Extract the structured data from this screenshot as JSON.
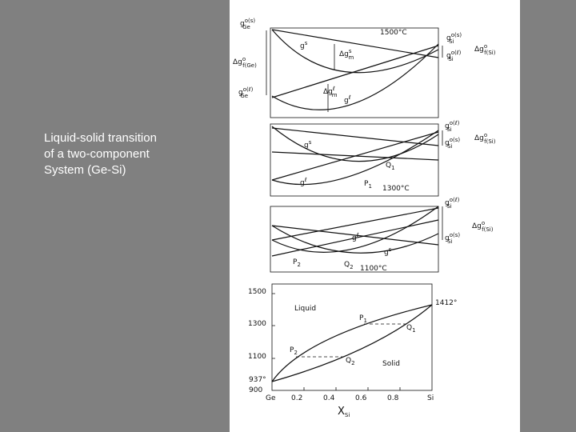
{
  "caption": [
    "Liquid-solid transition",
    "of a two-component",
    "System (Ge-Si)"
  ],
  "figure": {
    "panels": [
      {
        "labels": [
          {
            "b": "1500°C"
          },
          {
            "b": "g",
            "sup": "o(s)",
            "sub": "Ge"
          },
          {
            "b": "Δg",
            "sup": "o",
            "sub": "f(Ge)"
          },
          {
            "b": "g",
            "sup": "o(ℓ)",
            "sub": "Ge"
          },
          {
            "b": "g",
            "sup": "s"
          },
          {
            "b": "Δg",
            "sup": "s",
            "sub": "m"
          },
          {
            "b": "Δg",
            "sup": "ℓ",
            "sub": "m"
          },
          {
            "b": "g",
            "sup": "ℓ"
          },
          {
            "b": "g",
            "sup": "o(s)",
            "sub": "Si"
          },
          {
            "b": "g",
            "sup": "o(ℓ)",
            "sub": "Si"
          },
          {
            "b": "Δg",
            "sup": "o",
            "sub": "f(Si)"
          }
        ]
      },
      {
        "labels": [
          {
            "b": "1300°C"
          },
          {
            "b": "g",
            "sup": "s"
          },
          {
            "b": "g",
            "sup": "ℓ"
          },
          {
            "b": "Q",
            "sub": "1"
          },
          {
            "b": "P",
            "sub": "1"
          },
          {
            "b": "g",
            "sup": "o(ℓ)",
            "sub": "Si"
          },
          {
            "b": "g",
            "sup": "o(s)",
            "sub": "Si"
          },
          {
            "b": "Δg",
            "sup": "o",
            "sub": "f(Si)"
          }
        ]
      },
      {
        "labels": [
          {
            "b": "1100°C"
          },
          {
            "b": "g",
            "sup": "o(ℓ)",
            "sub": "Si"
          },
          {
            "b": "Δg",
            "sup": "o",
            "sub": "f(Si)"
          },
          {
            "b": "g",
            "sup": "o(s)",
            "sub": "Si"
          },
          {
            "b": "g",
            "sup": "ℓ"
          },
          {
            "b": "g",
            "sup": "s"
          },
          {
            "b": "P",
            "sub": "2"
          },
          {
            "b": "Q",
            "sub": "2"
          }
        ]
      },
      {
        "labels": [
          {
            "b": "1500"
          },
          {
            "b": "1300"
          },
          {
            "b": "1100"
          },
          {
            "b": "937°"
          },
          {
            "b": "900"
          },
          {
            "b": "Ge"
          },
          {
            "b": "0.2"
          },
          {
            "b": "0.4"
          },
          {
            "b": "0.6"
          },
          {
            "b": "0.8"
          },
          {
            "b": "Si"
          },
          {
            "b": "1412°"
          },
          {
            "b": "Liquid"
          },
          {
            "b": "Solid"
          },
          {
            "b": "P",
            "sub": "1"
          },
          {
            "b": "Q",
            "sub": "1"
          },
          {
            "b": "P",
            "sub": "2"
          },
          {
            "b": "Q",
            "sub": "2"
          },
          {
            "b": "X",
            "sub": "Si"
          }
        ]
      }
    ]
  }
}
